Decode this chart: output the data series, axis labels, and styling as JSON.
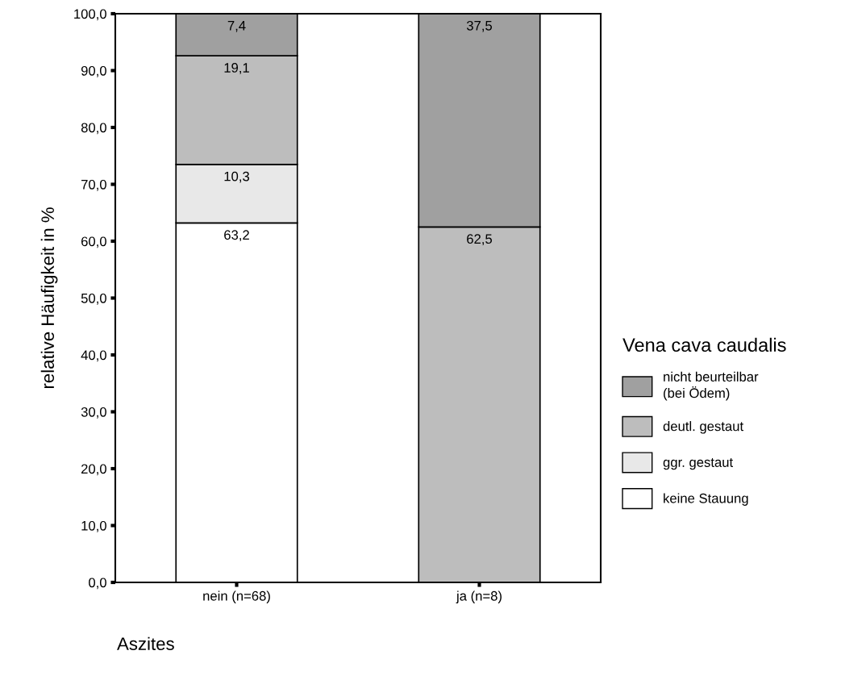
{
  "chart_data": {
    "type": "bar",
    "stacked": true,
    "categories": [
      "nein (n=68)",
      "ja (n=8)"
    ],
    "series": [
      {
        "name": "keine Stauung",
        "color": "#ffffff",
        "values": [
          63.2,
          null
        ],
        "value_labels": [
          "63,2",
          null
        ]
      },
      {
        "name": "ggr. gestaut",
        "color": "#e8e8e8",
        "values": [
          10.3,
          null
        ],
        "value_labels": [
          "10,3",
          null
        ]
      },
      {
        "name": "deutl. gestaut",
        "color": "#bdbdbd",
        "values": [
          19.1,
          62.5
        ],
        "value_labels": [
          "19,1",
          "62,5"
        ]
      },
      {
        "name": "nicht beurteilbar\n(bei Ödem)",
        "color": "#a0a0a0",
        "values": [
          7.4,
          37.5
        ],
        "value_labels": [
          "7,4",
          "37,5"
        ]
      }
    ],
    "xlabel": "Aszites",
    "ylabel": "relative Häufigkeit in %",
    "legend_title": "Vena cava caudalis",
    "ylim": [
      0,
      100
    ],
    "yticks": [
      {
        "value": 0,
        "label": "0,0"
      },
      {
        "value": 10,
        "label": "10,0"
      },
      {
        "value": 20,
        "label": "20,0"
      },
      {
        "value": 30,
        "label": "30,0"
      },
      {
        "value": 40,
        "label": "40,0"
      },
      {
        "value": 50,
        "label": "50,0"
      },
      {
        "value": 60,
        "label": "60,0"
      },
      {
        "value": 70,
        "label": "70,0"
      },
      {
        "value": 80,
        "label": "80,0"
      },
      {
        "value": 90,
        "label": "90,0"
      },
      {
        "value": 100,
        "label": "100,0"
      }
    ],
    "legend": "right",
    "grid": false
  }
}
